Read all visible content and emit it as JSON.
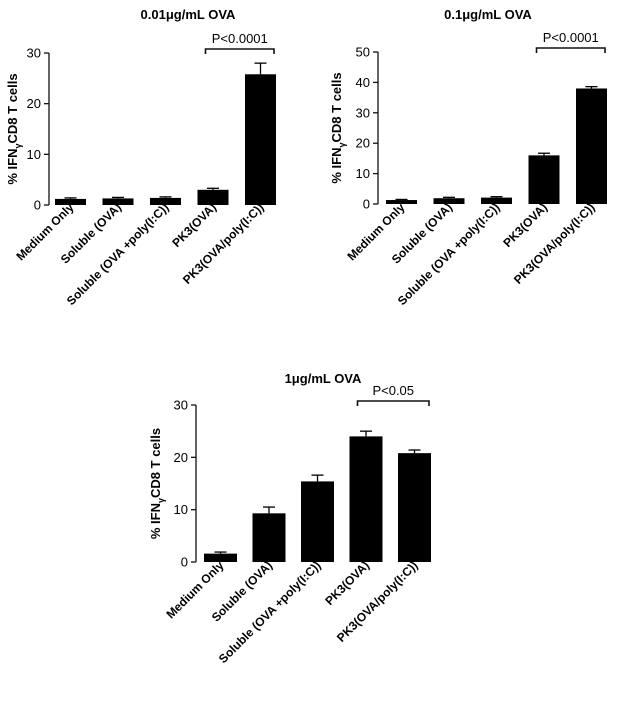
{
  "chart_data": [
    {
      "type": "bar",
      "title": "0.01μg/mL OVA",
      "ylabel": "% IFNγCD8 T cells",
      "ylabel_main": "% IFN",
      "ylabel_sub": "γ",
      "ylabel_rest": "CD8 T cells",
      "ylim": [
        0,
        30
      ],
      "yticks": [
        0,
        10,
        20,
        30
      ],
      "categories": [
        "Medium Only",
        "Soluble (OVA)",
        "Soluble (OVA +poly(I:C))",
        "PK3(OVA)",
        "PK3(OVA/poly(I:C))"
      ],
      "values": [
        1.2,
        1.3,
        1.4,
        3.0,
        25.8
      ],
      "errors": [
        0.2,
        0.2,
        0.2,
        0.3,
        2.2
      ],
      "significance": {
        "text": "P<0.0001",
        "from": 3,
        "to": 4
      }
    },
    {
      "type": "bar",
      "title": "0.1μg/mL OVA",
      "ylabel": "% IFNγCD8 T cells",
      "ylabel_main": "% IFN",
      "ylabel_sub": "γ",
      "ylabel_rest": "CD8 T cells",
      "ylim": [
        0,
        50
      ],
      "yticks": [
        0,
        10,
        20,
        30,
        40,
        50
      ],
      "categories": [
        "Medium Only",
        "Soluble (OVA)",
        "Soluble (OVA +poly(I:C))",
        "PK3(OVA)",
        "PK3(OVA/poly(I:C))"
      ],
      "values": [
        1.3,
        1.9,
        2.1,
        16.0,
        38.0
      ],
      "errors": [
        0.2,
        0.3,
        0.3,
        0.7,
        0.6
      ],
      "significance": {
        "text": "P<0.0001",
        "from": 3,
        "to": 4
      }
    },
    {
      "type": "bar",
      "title": "1μg/mL OVA",
      "ylabel": "% IFNγCD8 T cells",
      "ylabel_main": "% IFN",
      "ylabel_sub": "γ",
      "ylabel_rest": "CD8 T cells",
      "ylim": [
        0,
        30
      ],
      "yticks": [
        0,
        10,
        20,
        30
      ],
      "categories": [
        "Medium Only",
        "Soluble (OVA)",
        "Soluble (OVA +poly(I:C))",
        "PK3(OVA)",
        "PK3(OVA/poly(I:C))"
      ],
      "values": [
        1.6,
        9.3,
        15.4,
        24.0,
        20.8
      ],
      "errors": [
        0.3,
        1.2,
        1.2,
        1.0,
        0.6
      ],
      "significance": {
        "text": "P<0.05",
        "from": 3,
        "to": 4
      }
    }
  ]
}
